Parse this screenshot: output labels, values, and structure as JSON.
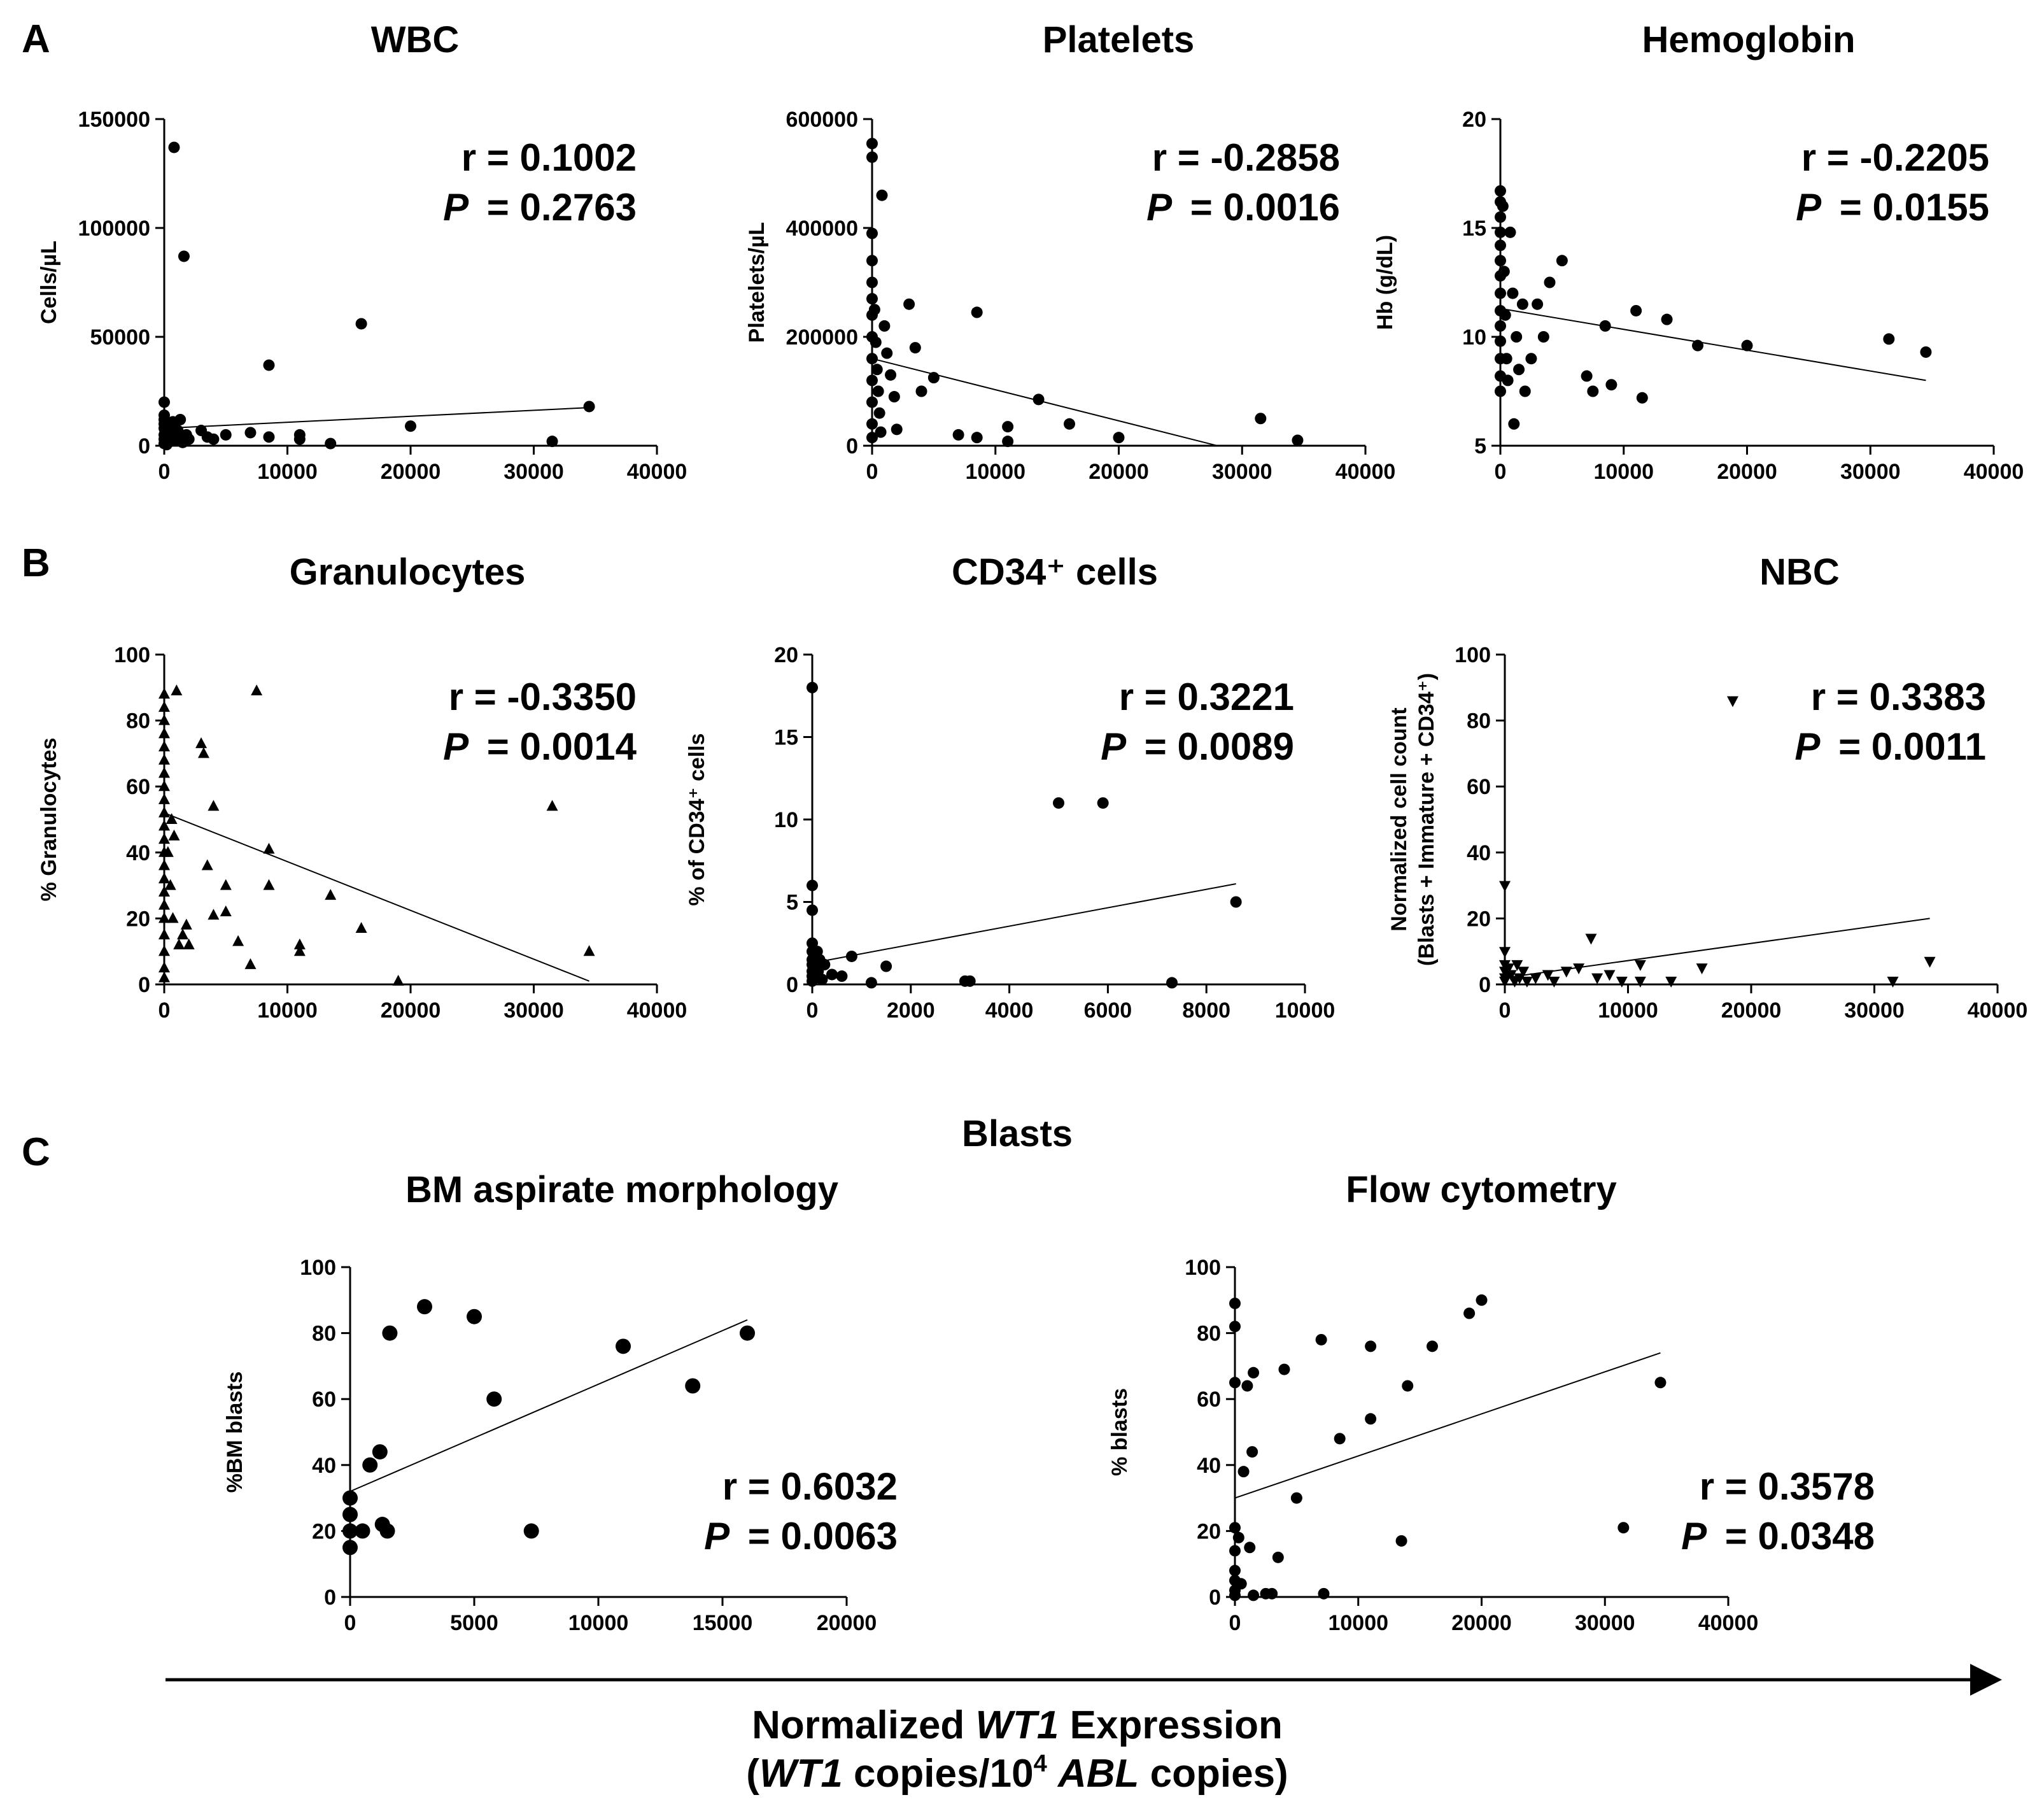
{
  "figure": {
    "panel_letters": [
      "A",
      "B",
      "C"
    ],
    "blasts_heading": "Blasts",
    "x_title_line1": {
      "pre": "Normalized ",
      "em": "WT1",
      "post": " Expression"
    },
    "x_title_line2": {
      "open": "(",
      "em1": "WT1",
      "mid": " copies/10",
      "sup": "4",
      "sp": " ",
      "em2": "ABL",
      "post": " copies)"
    }
  },
  "chart_data": [
    {
      "id": "wbc",
      "type": "scatter",
      "title": "WBC",
      "ylabel": "Cells/µL",
      "marker": "circle",
      "xlim": [
        0,
        40000
      ],
      "xticks": [
        0,
        10000,
        20000,
        30000,
        40000
      ],
      "ylim": [
        0,
        150000
      ],
      "yticks": [
        0,
        50000,
        100000,
        150000
      ],
      "r_label": "r = 0.1002",
      "p_prefix": "P",
      "p_value": "= 0.2763",
      "fit": [
        [
          0,
          8000
        ],
        [
          34500,
          17500
        ]
      ],
      "points": [
        [
          0,
          1000
        ],
        [
          0,
          3000
        ],
        [
          0,
          5000
        ],
        [
          0,
          8000
        ],
        [
          0,
          10000
        ],
        [
          0,
          12000
        ],
        [
          0,
          14000
        ],
        [
          0,
          20000
        ],
        [
          200,
          500
        ],
        [
          300,
          4000
        ],
        [
          400,
          9000
        ],
        [
          500,
          2000
        ],
        [
          600,
          6000
        ],
        [
          700,
          11000
        ],
        [
          800,
          137000
        ],
        [
          1000,
          3000
        ],
        [
          1100,
          7000
        ],
        [
          1300,
          12000
        ],
        [
          1500,
          1500
        ],
        [
          1600,
          87000
        ],
        [
          1800,
          5000
        ],
        [
          2000,
          3000
        ],
        [
          3000,
          7000
        ],
        [
          3500,
          4000
        ],
        [
          4000,
          3000
        ],
        [
          5000,
          5000
        ],
        [
          7000,
          6000
        ],
        [
          8500,
          37000
        ],
        [
          8500,
          4000
        ],
        [
          11000,
          5000
        ],
        [
          11000,
          3000
        ],
        [
          13500,
          1000
        ],
        [
          16000,
          56000
        ],
        [
          20000,
          9000
        ],
        [
          31500,
          2000
        ],
        [
          34500,
          18000
        ]
      ]
    },
    {
      "id": "platelets",
      "type": "scatter",
      "title": "Platelets",
      "ylabel": "Platelets/µL",
      "marker": "circle",
      "xlim": [
        0,
        40000
      ],
      "xticks": [
        0,
        10000,
        20000,
        30000,
        40000
      ],
      "ylim": [
        0,
        600000
      ],
      "yticks": [
        0,
        200000,
        400000,
        600000
      ],
      "r_label": "r = -0.2858",
      "p_prefix": "P",
      "p_value": "= 0.0016",
      "fit": [
        [
          0,
          160000
        ],
        [
          28000,
          0
        ]
      ],
      "points": [
        [
          0,
          555000
        ],
        [
          0,
          530000
        ],
        [
          0,
          390000
        ],
        [
          0,
          340000
        ],
        [
          0,
          300000
        ],
        [
          0,
          270000
        ],
        [
          0,
          240000
        ],
        [
          0,
          200000
        ],
        [
          0,
          160000
        ],
        [
          0,
          120000
        ],
        [
          0,
          80000
        ],
        [
          0,
          40000
        ],
        [
          0,
          15000
        ],
        [
          200,
          250000
        ],
        [
          300,
          190000
        ],
        [
          400,
          140000
        ],
        [
          500,
          100000
        ],
        [
          600,
          60000
        ],
        [
          700,
          25000
        ],
        [
          800,
          460000
        ],
        [
          1000,
          220000
        ],
        [
          1200,
          170000
        ],
        [
          1500,
          130000
        ],
        [
          1800,
          90000
        ],
        [
          2000,
          30000
        ],
        [
          3000,
          260000
        ],
        [
          3500,
          180000
        ],
        [
          4000,
          100000
        ],
        [
          5000,
          125000
        ],
        [
          7000,
          20000
        ],
        [
          8500,
          245000
        ],
        [
          8500,
          15000
        ],
        [
          11000,
          35000
        ],
        [
          11000,
          8000
        ],
        [
          13500,
          85000
        ],
        [
          16000,
          40000
        ],
        [
          20000,
          15000
        ],
        [
          31500,
          50000
        ],
        [
          34500,
          10000
        ]
      ]
    },
    {
      "id": "hemoglobin",
      "type": "scatter",
      "title": "Hemoglobin",
      "ylabel": "Hb (g/dL)",
      "marker": "circle",
      "xlim": [
        0,
        40000
      ],
      "xticks": [
        0,
        10000,
        20000,
        30000,
        40000
      ],
      "ylim": [
        5,
        20
      ],
      "yticks": [
        5,
        10,
        15,
        20
      ],
      "r_label": "r = -0.2205",
      "p_prefix": "P",
      "p_value": "= 0.0155",
      "fit": [
        [
          0,
          11.3
        ],
        [
          34500,
          8
        ]
      ],
      "points": [
        [
          0,
          16.7
        ],
        [
          0,
          16.2
        ],
        [
          0,
          15.5
        ],
        [
          0,
          14.8
        ],
        [
          0,
          14.2
        ],
        [
          0,
          13.5
        ],
        [
          0,
          12.8
        ],
        [
          0,
          12
        ],
        [
          0,
          11.2
        ],
        [
          0,
          10.5
        ],
        [
          0,
          9.8
        ],
        [
          0,
          9
        ],
        [
          0,
          8.2
        ],
        [
          0,
          7.5
        ],
        [
          200,
          16
        ],
        [
          300,
          13
        ],
        [
          400,
          11
        ],
        [
          500,
          9
        ],
        [
          600,
          8
        ],
        [
          800,
          14.8
        ],
        [
          1000,
          12
        ],
        [
          1100,
          6
        ],
        [
          1300,
          10
        ],
        [
          1500,
          8.5
        ],
        [
          1800,
          11.5
        ],
        [
          2000,
          7.5
        ],
        [
          2500,
          9
        ],
        [
          3000,
          11.5
        ],
        [
          3500,
          10
        ],
        [
          4000,
          12.5
        ],
        [
          5000,
          13.5
        ],
        [
          7000,
          8.2
        ],
        [
          7500,
          7.5
        ],
        [
          8500,
          10.5
        ],
        [
          9000,
          7.8
        ],
        [
          11000,
          11.2
        ],
        [
          11500,
          7.2
        ],
        [
          13500,
          10.8
        ],
        [
          16000,
          9.6
        ],
        [
          20000,
          9.6
        ],
        [
          31500,
          9.9
        ],
        [
          34500,
          9.3
        ]
      ]
    },
    {
      "id": "granulocytes",
      "type": "scatter",
      "title": "Granulocytes",
      "ylabel": "% Granulocytes",
      "marker": "triangle-up",
      "xlim": [
        0,
        40000
      ],
      "xticks": [
        0,
        10000,
        20000,
        30000,
        40000
      ],
      "ylim": [
        0,
        100
      ],
      "yticks": [
        0,
        20,
        40,
        60,
        80,
        100
      ],
      "r_label": "r = -0.3350",
      "p_prefix": "P",
      "p_value": "= 0.0014",
      "fit": [
        [
          0,
          52
        ],
        [
          34500,
          1
        ]
      ],
      "points": [
        [
          0,
          88
        ],
        [
          0,
          84
        ],
        [
          0,
          80
        ],
        [
          0,
          76
        ],
        [
          0,
          72
        ],
        [
          0,
          68
        ],
        [
          0,
          64
        ],
        [
          0,
          60
        ],
        [
          0,
          56
        ],
        [
          0,
          52
        ],
        [
          0,
          48
        ],
        [
          0,
          44
        ],
        [
          0,
          40
        ],
        [
          0,
          36
        ],
        [
          0,
          32
        ],
        [
          0,
          28
        ],
        [
          0,
          24
        ],
        [
          0,
          20
        ],
        [
          0,
          15
        ],
        [
          0,
          10
        ],
        [
          0,
          5
        ],
        [
          0,
          2
        ],
        [
          300,
          40
        ],
        [
          500,
          30
        ],
        [
          600,
          50
        ],
        [
          700,
          20
        ],
        [
          800,
          45
        ],
        [
          1000,
          89
        ],
        [
          1200,
          12
        ],
        [
          1500,
          15
        ],
        [
          1800,
          18
        ],
        [
          2000,
          12
        ],
        [
          3000,
          73
        ],
        [
          3200,
          70
        ],
        [
          3500,
          36
        ],
        [
          4000,
          54
        ],
        [
          4000,
          21
        ],
        [
          5000,
          30
        ],
        [
          5000,
          22
        ],
        [
          6000,
          13
        ],
        [
          7000,
          6
        ],
        [
          7500,
          89
        ],
        [
          8500,
          41
        ],
        [
          8500,
          30
        ],
        [
          11000,
          12
        ],
        [
          11000,
          10
        ],
        [
          13500,
          27
        ],
        [
          16000,
          17
        ],
        [
          19000,
          1
        ],
        [
          31500,
          54
        ],
        [
          34500,
          10
        ]
      ]
    },
    {
      "id": "cd34",
      "type": "scatter",
      "title": "CD34⁺ cells",
      "ylabel": "% of CD34⁺ cells",
      "marker": "circle",
      "xlim": [
        0,
        10000
      ],
      "xticks": [
        0,
        2000,
        4000,
        6000,
        8000,
        10000
      ],
      "ylim": [
        0,
        20
      ],
      "yticks": [
        0,
        5,
        10,
        15,
        20
      ],
      "r_label": "r = 0.3221",
      "p_prefix": "P",
      "p_value": "= 0.0089",
      "fit": [
        [
          0,
          1.3
        ],
        [
          8600,
          6.1
        ]
      ],
      "points": [
        [
          0,
          18
        ],
        [
          0,
          6
        ],
        [
          0,
          4.5
        ],
        [
          0,
          2.5
        ],
        [
          0,
          2
        ],
        [
          0,
          1.5
        ],
        [
          0,
          1.2
        ],
        [
          0,
          0.8
        ],
        [
          0,
          0.5
        ],
        [
          0,
          0.2
        ],
        [
          50,
          1
        ],
        [
          80,
          0.5
        ],
        [
          100,
          2
        ],
        [
          120,
          0.8
        ],
        [
          150,
          1.5
        ],
        [
          200,
          0.3
        ],
        [
          250,
          1.2
        ],
        [
          400,
          0.6
        ],
        [
          600,
          0.5
        ],
        [
          800,
          1.7
        ],
        [
          1200,
          0.1
        ],
        [
          1500,
          1.1
        ],
        [
          3100,
          0.2
        ],
        [
          3200,
          0.2
        ],
        [
          5000,
          11
        ],
        [
          5900,
          11
        ],
        [
          7300,
          0.1
        ],
        [
          8600,
          5
        ]
      ]
    },
    {
      "id": "nbc",
      "type": "scatter",
      "title": "NBC",
      "ylabel": "Normalized cell count",
      "ylabel2": "(Blasts + Immature + CD34⁺)",
      "marker": "triangle-down",
      "xlim": [
        0,
        40000
      ],
      "xticks": [
        0,
        10000,
        20000,
        30000,
        40000
      ],
      "ylim": [
        0,
        100
      ],
      "yticks": [
        0,
        20,
        40,
        60,
        80,
        100
      ],
      "r_label": "r = 0.3383",
      "p_prefix": "P",
      "p_value": "= 0.0011",
      "fit": [
        [
          0,
          2
        ],
        [
          34500,
          20
        ]
      ],
      "points": [
        [
          0,
          30
        ],
        [
          0,
          10
        ],
        [
          0,
          6
        ],
        [
          0,
          4
        ],
        [
          0,
          2
        ],
        [
          0,
          1
        ],
        [
          300,
          5
        ],
        [
          500,
          3
        ],
        [
          800,
          1
        ],
        [
          1000,
          6
        ],
        [
          1200,
          2
        ],
        [
          1500,
          4
        ],
        [
          1800,
          1
        ],
        [
          2500,
          2
        ],
        [
          3500,
          3
        ],
        [
          4000,
          1
        ],
        [
          5000,
          4
        ],
        [
          6000,
          5
        ],
        [
          7000,
          14
        ],
        [
          7500,
          2
        ],
        [
          8500,
          3
        ],
        [
          9500,
          1
        ],
        [
          11000,
          6
        ],
        [
          11000,
          1
        ],
        [
          13500,
          1
        ],
        [
          16000,
          5
        ],
        [
          18500,
          86
        ],
        [
          31500,
          1
        ],
        [
          34500,
          7
        ]
      ]
    },
    {
      "id": "bm_morph",
      "type": "scatter",
      "title": "BM aspirate morphology",
      "ylabel": "%BM blasts",
      "marker": "circle-large",
      "xlim": [
        0,
        20000
      ],
      "xticks": [
        0,
        5000,
        10000,
        15000,
        20000
      ],
      "ylim": [
        0,
        100
      ],
      "yticks": [
        0,
        20,
        40,
        60,
        80,
        100
      ],
      "r_label": "r = 0.6032",
      "p_prefix": "P",
      "p_value": "= 0.0063",
      "fit": [
        [
          0,
          32
        ],
        [
          16000,
          84
        ]
      ],
      "points": [
        [
          0,
          30
        ],
        [
          0,
          25
        ],
        [
          0,
          20
        ],
        [
          0,
          15
        ],
        [
          500,
          20
        ],
        [
          800,
          40
        ],
        [
          1200,
          44
        ],
        [
          1300,
          22
        ],
        [
          1500,
          20
        ],
        [
          1600,
          80
        ],
        [
          3000,
          88
        ],
        [
          5000,
          85
        ],
        [
          5800,
          60
        ],
        [
          7300,
          20
        ],
        [
          11000,
          76
        ],
        [
          13800,
          64
        ],
        [
          16000,
          80
        ]
      ]
    },
    {
      "id": "flow",
      "type": "scatter",
      "title": "Flow cytometry",
      "ylabel": "% blasts",
      "marker": "circle",
      "xlim": [
        0,
        40000
      ],
      "xticks": [
        0,
        10000,
        20000,
        30000,
        40000
      ],
      "ylim": [
        0,
        100
      ],
      "yticks": [
        0,
        20,
        40,
        60,
        80,
        100
      ],
      "r_label": "r = 0.3578",
      "p_prefix": "P",
      "p_value": "= 0.0348",
      "fit": [
        [
          0,
          30
        ],
        [
          34500,
          74
        ]
      ],
      "points": [
        [
          0,
          89
        ],
        [
          0,
          82
        ],
        [
          0,
          65
        ],
        [
          0,
          21
        ],
        [
          0,
          14
        ],
        [
          0,
          8
        ],
        [
          0,
          5
        ],
        [
          0,
          2
        ],
        [
          0,
          0.5
        ],
        [
          300,
          18
        ],
        [
          500,
          4
        ],
        [
          700,
          38
        ],
        [
          1000,
          64
        ],
        [
          1200,
          15
        ],
        [
          1400,
          44
        ],
        [
          1500,
          68
        ],
        [
          1500,
          0.5
        ],
        [
          2500,
          1
        ],
        [
          3000,
          1
        ],
        [
          3500,
          12
        ],
        [
          4000,
          69
        ],
        [
          5000,
          30
        ],
        [
          7000,
          78
        ],
        [
          7200,
          1
        ],
        [
          8500,
          48
        ],
        [
          11000,
          76
        ],
        [
          11000,
          54
        ],
        [
          13500,
          17
        ],
        [
          14000,
          64
        ],
        [
          16000,
          76
        ],
        [
          19000,
          86
        ],
        [
          20000,
          90
        ],
        [
          31500,
          21
        ],
        [
          34500,
          65
        ]
      ]
    }
  ]
}
